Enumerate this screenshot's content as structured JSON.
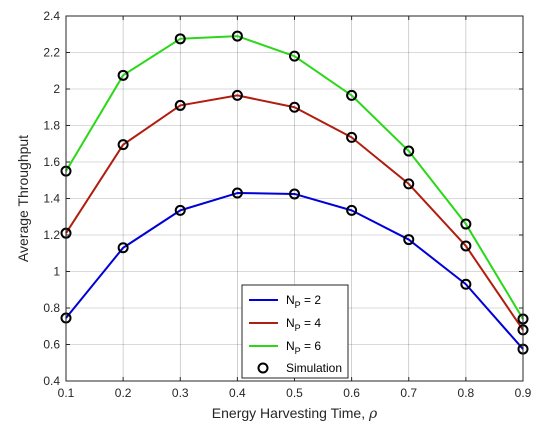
{
  "chart_data": {
    "type": "line",
    "xlabel": "Energy Harvesting Time, ",
    "xlabel_symbol": "ρ",
    "ylabel": "Average Throughput",
    "xlim": [
      0.1,
      0.9
    ],
    "ylim": [
      0.4,
      2.4
    ],
    "xticks": [
      "0.1",
      "0.2",
      "0.3",
      "0.4",
      "0.5",
      "0.6",
      "0.7",
      "0.8",
      "0.9"
    ],
    "yticks": [
      "0.4",
      "0.6",
      "0.8",
      "1",
      "1.2",
      "1.4",
      "1.6",
      "1.8",
      "2",
      "2.2",
      "2.4"
    ],
    "grid": true,
    "x": [
      0.1,
      0.2,
      0.3,
      0.4,
      0.5,
      0.6,
      0.7,
      0.8,
      0.9
    ],
    "series": [
      {
        "label_main": "N",
        "label_sub": "P",
        "label_rest": " = 2",
        "color": "#0000d8",
        "values": [
          0.745,
          1.13,
          1.335,
          1.43,
          1.425,
          1.335,
          1.175,
          0.93,
          0.575
        ]
      },
      {
        "label_main": "N",
        "label_sub": "P",
        "label_rest": " = 4",
        "color": "#b01e10",
        "values": [
          1.21,
          1.695,
          1.91,
          1.965,
          1.9,
          1.735,
          1.48,
          1.14,
          0.68
        ]
      },
      {
        "label_main": "N",
        "label_sub": "P",
        "label_rest": " = 6",
        "color": "#2ad818",
        "values": [
          1.55,
          2.075,
          2.275,
          2.29,
          2.18,
          1.965,
          1.66,
          1.26,
          0.74
        ]
      }
    ],
    "simulation_label": "Simulation",
    "legend_position": "bottom-right",
    "marker": "circle"
  }
}
